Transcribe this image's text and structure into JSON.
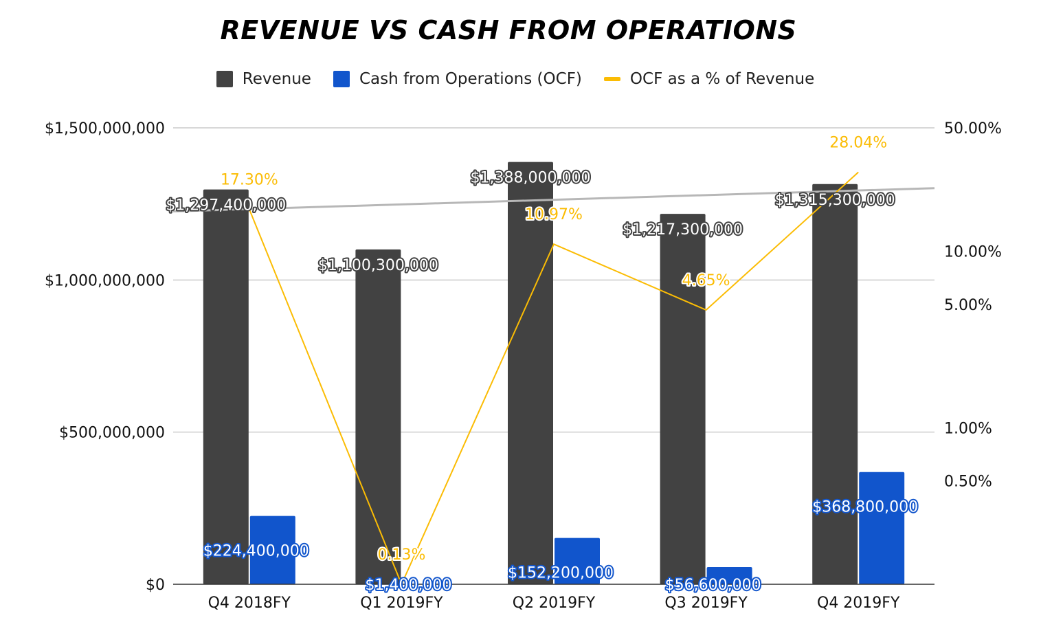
{
  "chart_data": {
    "type": "bar",
    "title": "REVENUE VS CASH FROM OPERATIONS",
    "categories": [
      "Q4 2018FY",
      "Q1 2019FY",
      "Q2 2019FY",
      "Q3 2019FY",
      "Q4 2019FY"
    ],
    "series": [
      {
        "name": "Revenue",
        "type": "bar",
        "axis": "left",
        "color": "#424242",
        "values": [
          1297400000,
          1100300000,
          1388000000,
          1217300000,
          1315300000
        ],
        "labels": [
          "$1,297,400,000",
          "$1,100,300,000",
          "$1,388,000,000",
          "$1,217,300,000",
          "$1,315,300,000"
        ]
      },
      {
        "name": "Cash from Operations (OCF)",
        "type": "bar",
        "axis": "left",
        "color": "#1155cc",
        "values": [
          224400000,
          1400000,
          152200000,
          56600000,
          368800000
        ],
        "labels": [
          "$224,400,000",
          "$1,400,000",
          "$152,200,000",
          "$56,600,000",
          "$368,800,000"
        ]
      },
      {
        "name": "OCF as a % of Revenue",
        "type": "line",
        "axis": "right",
        "color": "#fbbc04",
        "values": [
          17.3,
          0.13,
          10.97,
          4.65,
          28.04
        ],
        "labels": [
          "17.30%",
          "0.13%",
          "10.97%",
          "4.65%",
          "28.04%"
        ]
      }
    ],
    "trendline": {
      "series": "Revenue",
      "color": "#b7b7b7"
    },
    "y_left": {
      "ylim": [
        0,
        1500000000
      ],
      "ticks": [
        {
          "value": 0,
          "label": "$0"
        },
        {
          "value": 500000000,
          "label": "$500,000,000"
        },
        {
          "value": 1000000000,
          "label": "$1,000,000,000"
        },
        {
          "value": 1500000000,
          "label": "$1,500,000,000"
        }
      ]
    },
    "y_right": {
      "scale": "log",
      "ylim": [
        0.13,
        50
      ],
      "ticks": [
        {
          "value": 50,
          "label": "50.00%"
        },
        {
          "value": 10,
          "label": "10.00%"
        },
        {
          "value": 5,
          "label": "5.00%"
        },
        {
          "value": 1,
          "label": "1.00%"
        },
        {
          "value": 0.5,
          "label": "0.50%"
        }
      ]
    },
    "grid": true,
    "legend_position": "top"
  }
}
